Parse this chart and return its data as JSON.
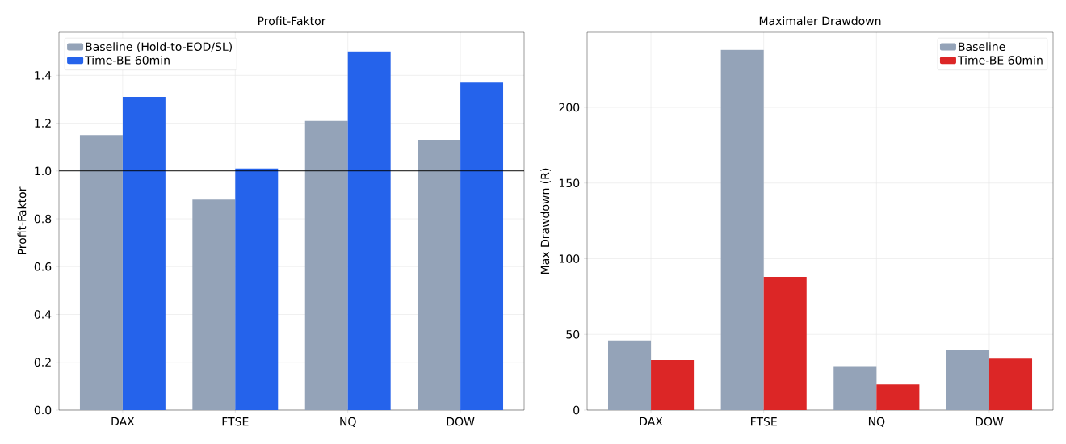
{
  "chart_data": [
    {
      "type": "bar",
      "title": "Profit-Faktor",
      "ylabel": "Profit-Faktor",
      "categories": [
        "DAX",
        "FTSE",
        "NQ",
        "DOW"
      ],
      "series": [
        {
          "name": "Baseline (Hold-to-EOD/SL)",
          "color": "#94a3b8",
          "values": [
            1.15,
            0.88,
            1.21,
            1.13
          ]
        },
        {
          "name": "Time-BE 60min",
          "color": "#2563eb",
          "values": [
            1.31,
            1.01,
            1.5,
            1.37
          ]
        }
      ],
      "ylim": [
        0,
        1.58
      ],
      "yticks": [
        {
          "value": 0,
          "label": "0.0"
        },
        {
          "value": 0.2,
          "label": "0.2"
        },
        {
          "value": 0.4,
          "label": "0.4"
        },
        {
          "value": 0.6,
          "label": "0.6"
        },
        {
          "value": 0.8,
          "label": "0.8"
        },
        {
          "value": 1.0,
          "label": "1.0"
        },
        {
          "value": 1.2,
          "label": "1.2"
        },
        {
          "value": 1.4,
          "label": "1.4"
        }
      ],
      "ref_lines": [
        {
          "axis": "y",
          "value": 1.0,
          "color": "#000000"
        }
      ],
      "grid": true,
      "legend": "top left"
    },
    {
      "type": "bar",
      "title": "Maximaler Drawdown",
      "ylabel": "Max Drawdown (R)",
      "categories": [
        "DAX",
        "FTSE",
        "NQ",
        "DOW"
      ],
      "series": [
        {
          "name": "Baseline",
          "color": "#94a3b8",
          "values": [
            46,
            238,
            29,
            40
          ]
        },
        {
          "name": "Time-BE 60min",
          "color": "#dc2626",
          "values": [
            33,
            88,
            17,
            34
          ]
        }
      ],
      "ylim": [
        0,
        249.6
      ],
      "yticks": [
        0,
        50,
        100,
        150,
        200
      ],
      "grid": true,
      "legend": "top right"
    }
  ]
}
